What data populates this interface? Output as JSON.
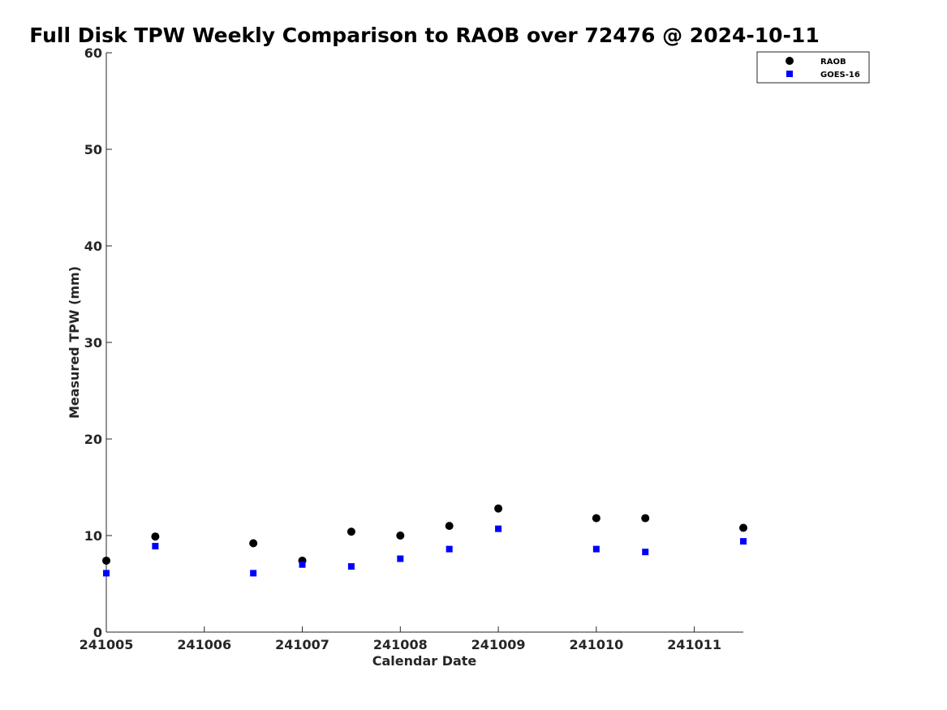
{
  "chart_data": {
    "type": "scatter",
    "title": "Full Disk TPW Weekly Comparison to RAOB over 72476 @ 2024-10-11",
    "xlabel": "Calendar Date",
    "ylabel": "Measured TPW (mm)",
    "x_tick_labels": [
      "241005",
      "241006",
      "241007",
      "241008",
      "241009",
      "241010",
      "241011"
    ],
    "y_tick_labels": [
      "0",
      "10",
      "20",
      "30",
      "40",
      "50",
      "60"
    ],
    "xlim": [
      "241005",
      "241011 12Z"
    ],
    "ylim": [
      0,
      60
    ],
    "grid": false,
    "legend_position": "top-right",
    "series": [
      {
        "name": "RAOB",
        "marker": "circle",
        "color": "#000000",
        "points": [
          {
            "x": "241005 00Z",
            "y": 7.4
          },
          {
            "x": "241005 12Z",
            "y": 9.9
          },
          {
            "x": "241006 12Z",
            "y": 9.2
          },
          {
            "x": "241007 00Z",
            "y": 7.4
          },
          {
            "x": "241007 12Z",
            "y": 10.4
          },
          {
            "x": "241008 00Z",
            "y": 10.0
          },
          {
            "x": "241008 12Z",
            "y": 11.0
          },
          {
            "x": "241009 00Z",
            "y": 12.8
          },
          {
            "x": "241010 00Z",
            "y": 11.8
          },
          {
            "x": "241010 12Z",
            "y": 11.8
          },
          {
            "x": "241011 12Z",
            "y": 10.8
          }
        ]
      },
      {
        "name": "GOES-16",
        "marker": "square",
        "color": "#0000ff",
        "points": [
          {
            "x": "241005 00Z",
            "y": 6.1
          },
          {
            "x": "241005 12Z",
            "y": 8.9
          },
          {
            "x": "241006 12Z",
            "y": 6.1
          },
          {
            "x": "241007 00Z",
            "y": 7.0
          },
          {
            "x": "241007 12Z",
            "y": 6.8
          },
          {
            "x": "241008 00Z",
            "y": 7.6
          },
          {
            "x": "241008 12Z",
            "y": 8.6
          },
          {
            "x": "241009 00Z",
            "y": 10.7
          },
          {
            "x": "241010 00Z",
            "y": 8.6
          },
          {
            "x": "241010 12Z",
            "y": 8.3
          },
          {
            "x": "241011 12Z",
            "y": 9.4
          }
        ]
      }
    ]
  }
}
